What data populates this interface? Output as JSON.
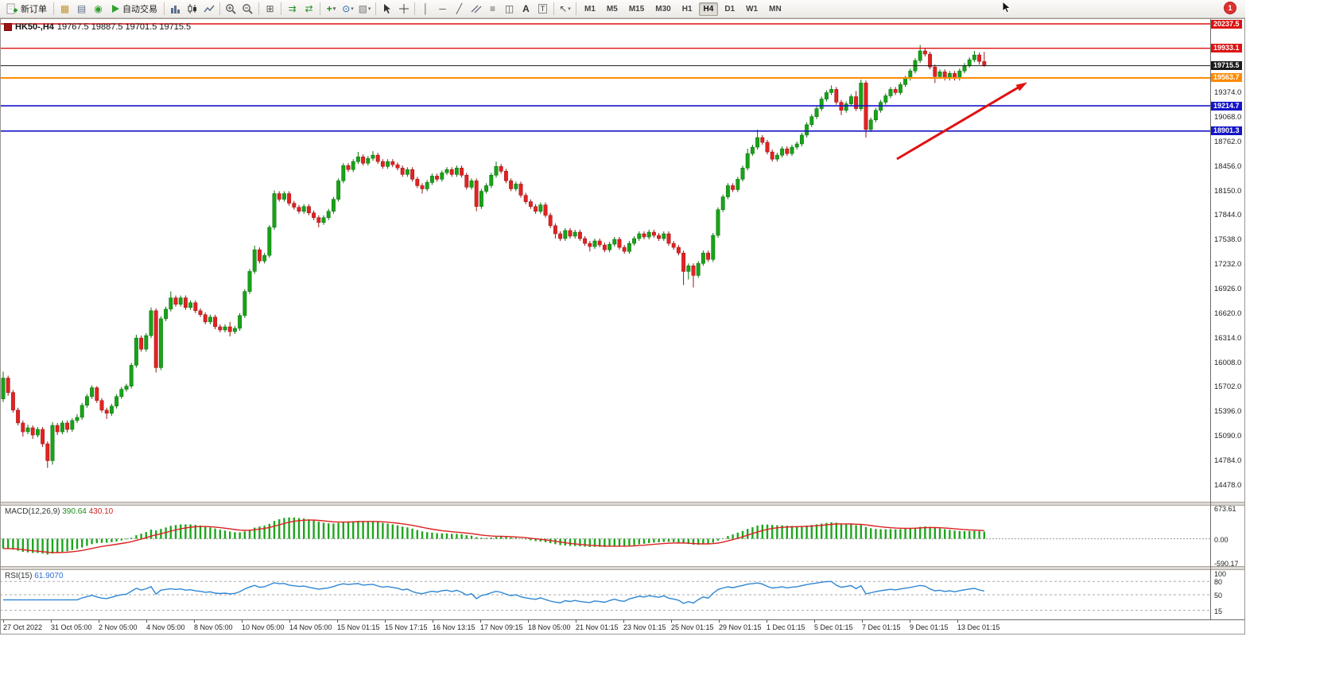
{
  "toolbar": {
    "new_order_label": "新订单",
    "autotrading_label": "自动交易",
    "timeframes": [
      "M1",
      "M5",
      "M15",
      "M30",
      "H1",
      "H4",
      "D1",
      "W1",
      "MN"
    ],
    "active_timeframe": "H4",
    "notification_count": "1"
  },
  "chart": {
    "symbol": "HK50-,H4",
    "ohlc_text": "19767.5 19887.5 19701.5 19715.5",
    "levels": [
      {
        "name": "resistance-line-1",
        "label": "20237.5",
        "price": 20237.5,
        "color": "#dd1111",
        "width": 1.4
      },
      {
        "name": "resistance-line-2",
        "label": "19933.1",
        "price": 19933.1,
        "color": "#dd1111",
        "width": 1.4
      },
      {
        "name": "current-price-line",
        "label": "19715.5",
        "price": 19715.5,
        "color": "#1a1a1a",
        "width": 1
      },
      {
        "name": "support-line-orange",
        "label": "19563.7",
        "price": 19563.7,
        "color": "#ff8a00",
        "width": 2
      },
      {
        "name": "support-line-blue-1",
        "label": "19214.7",
        "price": 19214.7,
        "color": "#1414c8",
        "width": 1.6
      },
      {
        "name": "support-line-blue-2",
        "label": "18901.3",
        "price": 18901.3,
        "color": "#1414c8",
        "width": 1.6
      }
    ],
    "price_axis_labels": [
      "19374.0",
      "19068.0",
      "18762.0",
      "18456.0",
      "18150.0",
      "17844.0",
      "17538.0",
      "17232.0",
      "16926.0",
      "16620.0",
      "16314.0",
      "16008.0",
      "15702.0",
      "15396.0",
      "15090.0",
      "14784.0",
      "14478.0"
    ],
    "time_axis_labels": [
      "27 Oct 2022",
      "31 Oct 05:00",
      "2 Nov 05:00",
      "4 Nov 05:00",
      "8 Nov 05:00",
      "10 Nov 05:00",
      "14 Nov 05:00",
      "15 Nov 01:15",
      "15 Nov 17:15",
      "16 Nov 13:15",
      "17 Nov 09:15",
      "18 Nov 05:00",
      "21 Nov 01:15",
      "23 Nov 01:15",
      "25 Nov 01:15",
      "29 Nov 01:15",
      "1 Dec 01:15",
      "5 Dec 01:15",
      "7 Dec 01:15",
      "9 Dec 01:15",
      "13 Dec 01:15"
    ]
  },
  "macd": {
    "title": "MACD(12,26,9)",
    "value": "390.64",
    "signal_value": "430.10",
    "axis_labels": [
      "673.61",
      "0.00",
      "-590.17"
    ],
    "axis_max": 673.61,
    "axis_min": -590.17,
    "histogram_color": "#1fa51f",
    "signal_color": "#dd2222"
  },
  "rsi": {
    "title": "RSI(15)",
    "value": "61.9070",
    "axis_labels": [
      "100",
      "80",
      "50",
      "15"
    ],
    "levels": [
      80,
      50,
      15
    ],
    "line_color": "#2e86d4"
  },
  "annotation_arrow": {
    "color": "#e01212"
  },
  "chart_data": {
    "type": "candlestick",
    "symbol": "HK50-",
    "timeframe": "H4",
    "title": "HK50-,H4 19767.5 19887.5 19701.5 19715.5",
    "visible_range": {
      "first_bar": "27 Oct 2022",
      "last_bar": "13 Dec",
      "price_min": 14478,
      "price_max": 20297
    },
    "current_bar": {
      "open": 19767.5,
      "high": 19887.5,
      "low": 19701.5,
      "close": 19715.5
    },
    "candles_ohlc": [
      [
        15560,
        15900,
        15520,
        15820
      ],
      [
        15820,
        15850,
        15600,
        15640
      ],
      [
        15640,
        15670,
        15390,
        15420
      ],
      [
        15420,
        15450,
        15230,
        15260
      ],
      [
        15260,
        15290,
        15090,
        15150
      ],
      [
        15150,
        15240,
        15120,
        15200
      ],
      [
        15200,
        15230,
        15060,
        15110
      ],
      [
        15110,
        15210,
        15080,
        15180
      ],
      [
        15180,
        15210,
        14960,
        15000
      ],
      [
        15000,
        15030,
        14700,
        14790
      ],
      [
        14790,
        15270,
        14740,
        15230
      ],
      [
        15230,
        15260,
        15110,
        15150
      ],
      [
        15150,
        15290,
        15120,
        15260
      ],
      [
        15260,
        15290,
        15140,
        15180
      ],
      [
        15180,
        15320,
        15150,
        15290
      ],
      [
        15290,
        15370,
        15260,
        15330
      ],
      [
        15330,
        15510,
        15300,
        15480
      ],
      [
        15480,
        15620,
        15450,
        15590
      ],
      [
        15590,
        15730,
        15560,
        15700
      ],
      [
        15700,
        15720,
        15510,
        15540
      ],
      [
        15540,
        15570,
        15390,
        15420
      ],
      [
        15420,
        15450,
        15310,
        15380
      ],
      [
        15380,
        15500,
        15350,
        15470
      ],
      [
        15470,
        15620,
        15440,
        15590
      ],
      [
        15590,
        15710,
        15560,
        15680
      ],
      [
        15680,
        15750,
        15650,
        15720
      ],
      [
        15720,
        16010,
        15690,
        15980
      ],
      [
        15980,
        16360,
        15950,
        16320
      ],
      [
        16320,
        16350,
        16150,
        16180
      ],
      [
        16180,
        16380,
        16150,
        16350
      ],
      [
        16350,
        16700,
        16320,
        16660
      ],
      [
        16660,
        16690,
        15890,
        15950
      ],
      [
        15950,
        16590,
        15920,
        16560
      ],
      [
        16560,
        16710,
        16530,
        16680
      ],
      [
        16680,
        16900,
        16650,
        16820
      ],
      [
        16820,
        16850,
        16710,
        16740
      ],
      [
        16740,
        16850,
        16710,
        16820
      ],
      [
        16820,
        16850,
        16670,
        16700
      ],
      [
        16700,
        16790,
        16670,
        16760
      ],
      [
        16760,
        16790,
        16630,
        16660
      ],
      [
        16660,
        16690,
        16580,
        16610
      ],
      [
        16610,
        16640,
        16490,
        16520
      ],
      [
        16520,
        16610,
        16490,
        16580
      ],
      [
        16580,
        16610,
        16430,
        16460
      ],
      [
        16460,
        16490,
        16390,
        16420
      ],
      [
        16420,
        16490,
        16390,
        16460
      ],
      [
        16460,
        16520,
        16340,
        16400
      ],
      [
        16400,
        16470,
        16370,
        16440
      ],
      [
        16440,
        16630,
        16410,
        16600
      ],
      [
        16600,
        16930,
        16570,
        16900
      ],
      [
        16900,
        17180,
        16870,
        17150
      ],
      [
        17150,
        17470,
        17120,
        17420
      ],
      [
        17420,
        17450,
        17250,
        17280
      ],
      [
        17280,
        17380,
        17250,
        17350
      ],
      [
        17350,
        17730,
        17320,
        17700
      ],
      [
        17700,
        18160,
        17670,
        18120
      ],
      [
        18120,
        18150,
        18020,
        18050
      ],
      [
        18050,
        18150,
        18020,
        18120
      ],
      [
        18120,
        18150,
        17970,
        18000
      ],
      [
        18000,
        18030,
        17920,
        17950
      ],
      [
        17950,
        17980,
        17870,
        17900
      ],
      [
        17900,
        17990,
        17870,
        17960
      ],
      [
        17960,
        17990,
        17850,
        17880
      ],
      [
        17880,
        17910,
        17790,
        17820
      ],
      [
        17820,
        17850,
        17700,
        17760
      ],
      [
        17760,
        17850,
        17730,
        17820
      ],
      [
        17820,
        17930,
        17790,
        17900
      ],
      [
        17900,
        18080,
        17870,
        18050
      ],
      [
        18050,
        18310,
        18020,
        18280
      ],
      [
        18280,
        18500,
        18250,
        18470
      ],
      [
        18470,
        18500,
        18390,
        18420
      ],
      [
        18420,
        18550,
        18390,
        18520
      ],
      [
        18520,
        18640,
        18490,
        18580
      ],
      [
        18580,
        18610,
        18470,
        18500
      ],
      [
        18500,
        18590,
        18470,
        18560
      ],
      [
        18560,
        18650,
        18530,
        18600
      ],
      [
        18600,
        18630,
        18490,
        18520
      ],
      [
        18520,
        18550,
        18430,
        18460
      ],
      [
        18460,
        18550,
        18430,
        18520
      ],
      [
        18520,
        18550,
        18450,
        18480
      ],
      [
        18480,
        18510,
        18410,
        18440
      ],
      [
        18440,
        18470,
        18330,
        18360
      ],
      [
        18360,
        18450,
        18330,
        18420
      ],
      [
        18420,
        18450,
        18270,
        18300
      ],
      [
        18300,
        18330,
        18190,
        18220
      ],
      [
        18220,
        18250,
        18120,
        18180
      ],
      [
        18180,
        18290,
        18150,
        18260
      ],
      [
        18260,
        18370,
        18230,
        18340
      ],
      [
        18340,
        18370,
        18270,
        18300
      ],
      [
        18300,
        18410,
        18270,
        18380
      ],
      [
        18380,
        18450,
        18350,
        18420
      ],
      [
        18420,
        18450,
        18330,
        18360
      ],
      [
        18360,
        18470,
        18330,
        18440
      ],
      [
        18440,
        18470,
        18320,
        18350
      ],
      [
        18350,
        18380,
        18170,
        18200
      ],
      [
        18200,
        18310,
        18170,
        18280
      ],
      [
        18280,
        18310,
        17900,
        17960
      ],
      [
        17960,
        18180,
        17930,
        18150
      ],
      [
        18150,
        18250,
        18120,
        18220
      ],
      [
        18220,
        18380,
        18190,
        18350
      ],
      [
        18350,
        18520,
        18320,
        18460
      ],
      [
        18460,
        18490,
        18370,
        18400
      ],
      [
        18400,
        18430,
        18250,
        18280
      ],
      [
        18280,
        18310,
        18150,
        18180
      ],
      [
        18180,
        18270,
        18150,
        18240
      ],
      [
        18240,
        18270,
        18070,
        18100
      ],
      [
        18100,
        18130,
        17990,
        18020
      ],
      [
        18020,
        18050,
        17930,
        17960
      ],
      [
        17960,
        17990,
        17870,
        17900
      ],
      [
        17900,
        18010,
        17870,
        17980
      ],
      [
        17980,
        18010,
        17820,
        17850
      ],
      [
        17850,
        17880,
        17690,
        17720
      ],
      [
        17720,
        17750,
        17560,
        17620
      ],
      [
        17620,
        17650,
        17530,
        17560
      ],
      [
        17560,
        17690,
        17530,
        17660
      ],
      [
        17660,
        17690,
        17560,
        17590
      ],
      [
        17590,
        17670,
        17560,
        17640
      ],
      [
        17640,
        17670,
        17530,
        17560
      ],
      [
        17560,
        17590,
        17470,
        17500
      ],
      [
        17500,
        17530,
        17400,
        17460
      ],
      [
        17460,
        17560,
        17430,
        17530
      ],
      [
        17530,
        17560,
        17450,
        17480
      ],
      [
        17480,
        17510,
        17390,
        17420
      ],
      [
        17420,
        17520,
        17390,
        17490
      ],
      [
        17490,
        17580,
        17460,
        17550
      ],
      [
        17550,
        17580,
        17420,
        17450
      ],
      [
        17450,
        17480,
        17370,
        17400
      ],
      [
        17400,
        17530,
        17370,
        17500
      ],
      [
        17500,
        17590,
        17470,
        17560
      ],
      [
        17560,
        17650,
        17530,
        17620
      ],
      [
        17620,
        17650,
        17550,
        17580
      ],
      [
        17580,
        17670,
        17550,
        17640
      ],
      [
        17640,
        17670,
        17570,
        17600
      ],
      [
        17600,
        17630,
        17530,
        17560
      ],
      [
        17560,
        17650,
        17530,
        17620
      ],
      [
        17620,
        17650,
        17470,
        17500
      ],
      [
        17500,
        17530,
        17420,
        17450
      ],
      [
        17450,
        17480,
        17350,
        17380
      ],
      [
        17380,
        17410,
        16980,
        17150
      ],
      [
        17150,
        17250,
        17050,
        17220
      ],
      [
        17220,
        17250,
        16950,
        17100
      ],
      [
        17100,
        17280,
        17070,
        17250
      ],
      [
        17250,
        17410,
        17220,
        17380
      ],
      [
        17380,
        17410,
        17270,
        17300
      ],
      [
        17300,
        17630,
        17270,
        17600
      ],
      [
        17600,
        17950,
        17570,
        17920
      ],
      [
        17920,
        18110,
        17890,
        18080
      ],
      [
        18080,
        18250,
        18050,
        18220
      ],
      [
        18220,
        18250,
        18140,
        18170
      ],
      [
        18170,
        18330,
        18140,
        18300
      ],
      [
        18300,
        18470,
        18270,
        18440
      ],
      [
        18440,
        18680,
        18410,
        18620
      ],
      [
        18620,
        18730,
        18590,
        18700
      ],
      [
        18700,
        18920,
        18670,
        18820
      ],
      [
        18820,
        18850,
        18730,
        18760
      ],
      [
        18760,
        18790,
        18610,
        18640
      ],
      [
        18640,
        18670,
        18520,
        18550
      ],
      [
        18550,
        18630,
        18520,
        18600
      ],
      [
        18600,
        18710,
        18570,
        18680
      ],
      [
        18680,
        18710,
        18590,
        18620
      ],
      [
        18620,
        18730,
        18590,
        18700
      ],
      [
        18700,
        18770,
        18670,
        18740
      ],
      [
        18740,
        18880,
        18710,
        18850
      ],
      [
        18850,
        19010,
        18820,
        18980
      ],
      [
        18980,
        19110,
        18950,
        19080
      ],
      [
        19080,
        19210,
        19050,
        19180
      ],
      [
        19180,
        19330,
        19150,
        19300
      ],
      [
        19300,
        19410,
        19270,
        19380
      ],
      [
        19380,
        19470,
        19350,
        19420
      ],
      [
        19420,
        19450,
        19230,
        19260
      ],
      [
        19260,
        19290,
        19100,
        19160
      ],
      [
        19160,
        19270,
        19130,
        19240
      ],
      [
        19240,
        19360,
        19210,
        19330
      ],
      [
        19330,
        19400,
        19150,
        19180
      ],
      [
        19180,
        19540,
        19150,
        19500
      ],
      [
        19500,
        19530,
        18820,
        18920
      ],
      [
        18920,
        19070,
        18890,
        19040
      ],
      [
        19040,
        19190,
        19010,
        19160
      ],
      [
        19160,
        19290,
        19130,
        19260
      ],
      [
        19260,
        19370,
        19230,
        19340
      ],
      [
        19340,
        19450,
        19310,
        19420
      ],
      [
        19420,
        19450,
        19350,
        19380
      ],
      [
        19380,
        19510,
        19350,
        19480
      ],
      [
        19480,
        19590,
        19450,
        19560
      ],
      [
        19560,
        19680,
        19530,
        19650
      ],
      [
        19650,
        19810,
        19620,
        19780
      ],
      [
        19780,
        19975,
        19750,
        19900
      ],
      [
        19900,
        19930,
        19830,
        19860
      ],
      [
        19860,
        19890,
        19670,
        19700
      ],
      [
        19700,
        19730,
        19500,
        19580
      ],
      [
        19580,
        19670,
        19550,
        19640
      ],
      [
        19640,
        19670,
        19530,
        19560
      ],
      [
        19560,
        19650,
        19530,
        19620
      ],
      [
        19620,
        19650,
        19530,
        19560
      ],
      [
        19560,
        19680,
        19530,
        19650
      ],
      [
        19650,
        19750,
        19620,
        19720
      ],
      [
        19720,
        19820,
        19690,
        19790
      ],
      [
        19790,
        19900,
        19760,
        19850
      ],
      [
        19850,
        19880,
        19730,
        19770
      ],
      [
        19767.5,
        19887.5,
        19701.5,
        19715.5
      ]
    ]
  }
}
